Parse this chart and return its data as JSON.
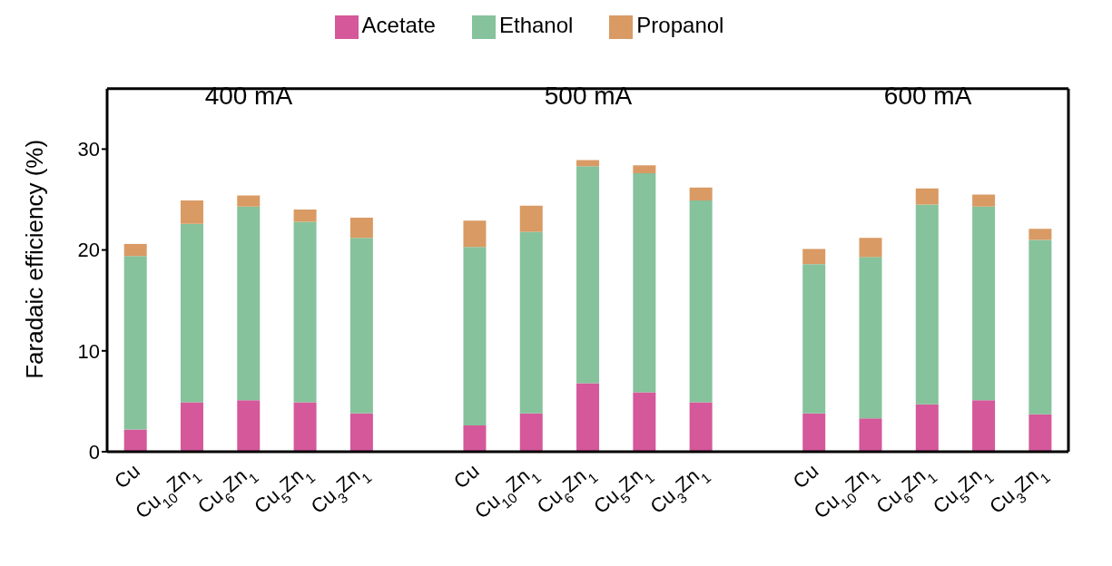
{
  "chart_data": {
    "type": "bar",
    "stacked": true,
    "ylabel": "Faradaic efficiency (%)",
    "categories": [
      "Cu",
      "Cu$_{10}$Zn$_{1}$",
      "Cu$_{6}$Zn$_{1}$",
      "Cu$_{5}$Zn$_{1}$",
      "Cu$_{3}$Zn$_{1}$",
      null,
      "Cu",
      "Cu$_{10}$Zn$_{1}$",
      "Cu$_{6}$Zn$_{1}$",
      "Cu$_{5}$Zn$_{1}$",
      "Cu$_{3}$Zn$_{1}$",
      null,
      "Cu",
      "Cu$_{10}$Zn$_{1}$",
      "Cu$_{6}$Zn$_{1}$",
      "Cu$_{5}$Zn$_{1}$",
      "Cu$_{3}$Zn$_{1}$"
    ],
    "series": [
      {
        "name": "Acetate",
        "color": "#d4589a",
        "values": [
          2.2,
          4.9,
          5.1,
          4.9,
          3.8,
          null,
          2.6,
          3.8,
          6.8,
          5.9,
          4.9,
          null,
          3.8,
          3.3,
          4.7,
          5.1,
          3.7
        ]
      },
      {
        "name": "Ethanol",
        "color": "#86c29b",
        "values": [
          17.2,
          17.7,
          19.2,
          17.9,
          17.4,
          null,
          17.7,
          18.0,
          21.5,
          21.7,
          20.0,
          null,
          14.8,
          16.0,
          19.8,
          19.2,
          17.3
        ]
      },
      {
        "name": "Propanol",
        "color": "#d99a64",
        "values": [
          1.2,
          2.3,
          1.1,
          1.2,
          2.0,
          null,
          2.6,
          2.6,
          0.6,
          0.8,
          1.3,
          null,
          1.5,
          1.9,
          1.6,
          1.2,
          1.1
        ]
      }
    ],
    "ylim": [
      0,
      36
    ],
    "yticks": [
      0,
      10,
      20,
      30
    ],
    "legend": "top",
    "annotations": [
      "400 mA",
      "500 mA",
      "600 mA"
    ]
  }
}
